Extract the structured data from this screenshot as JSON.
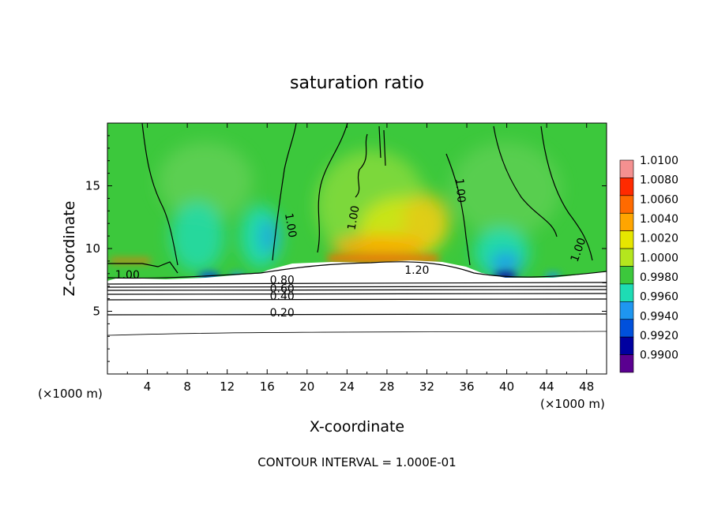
{
  "chart_data": {
    "type": "heatmap",
    "title": "saturation ratio",
    "xlabel": "X-coordinate",
    "ylabel": "Z-coordinate",
    "x_unit_left": "(×1000 m)",
    "x_unit_right": "(×1000 m)",
    "xlim": [
      0,
      50
    ],
    "ylim": [
      0,
      20
    ],
    "xticks": [
      "4",
      "8",
      "12",
      "16",
      "20",
      "24",
      "28",
      "32",
      "36",
      "40",
      "44",
      "48"
    ],
    "yticks": [
      "5",
      "10",
      "15"
    ],
    "footer": "CONTOUR INTERVAL =  1.000E-01",
    "colorbar": {
      "labels": [
        "1.0100",
        "1.0080",
        "1.0060",
        "1.0040",
        "1.0020",
        "1.0000",
        "0.9980",
        "0.9960",
        "0.9940",
        "0.9920",
        "0.9900"
      ],
      "colors": [
        "#f49090",
        "#ff2a00",
        "#ff6a00",
        "#ffa500",
        "#e6e600",
        "#b4e61e",
        "#3cc83c",
        "#1edcb4",
        "#1e96f0",
        "#0050dc",
        "#0000a0",
        "#5a0090"
      ]
    },
    "contour_labels": [
      {
        "text": "1.00",
        "x": 2,
        "y": 7.6
      },
      {
        "text": "1.00",
        "x": 18,
        "y": 11.8,
        "rotate": 80
      },
      {
        "text": "1.00",
        "x": 25,
        "y": 12.4,
        "rotate": -80
      },
      {
        "text": "1.00",
        "x": 35,
        "y": 14.6,
        "rotate": 85
      },
      {
        "text": "1.00",
        "x": 47.5,
        "y": 9.8,
        "rotate": -70
      },
      {
        "text": "1.20",
        "x": 31,
        "y": 8.0
      },
      {
        "text": "0.80",
        "x": 17.5,
        "y": 7.2
      },
      {
        "text": "0.60",
        "x": 17.5,
        "y": 6.5
      },
      {
        "text": "0.40",
        "x": 17.5,
        "y": 5.9
      },
      {
        "text": "0.20",
        "x": 17.5,
        "y": 4.6
      }
    ]
  }
}
